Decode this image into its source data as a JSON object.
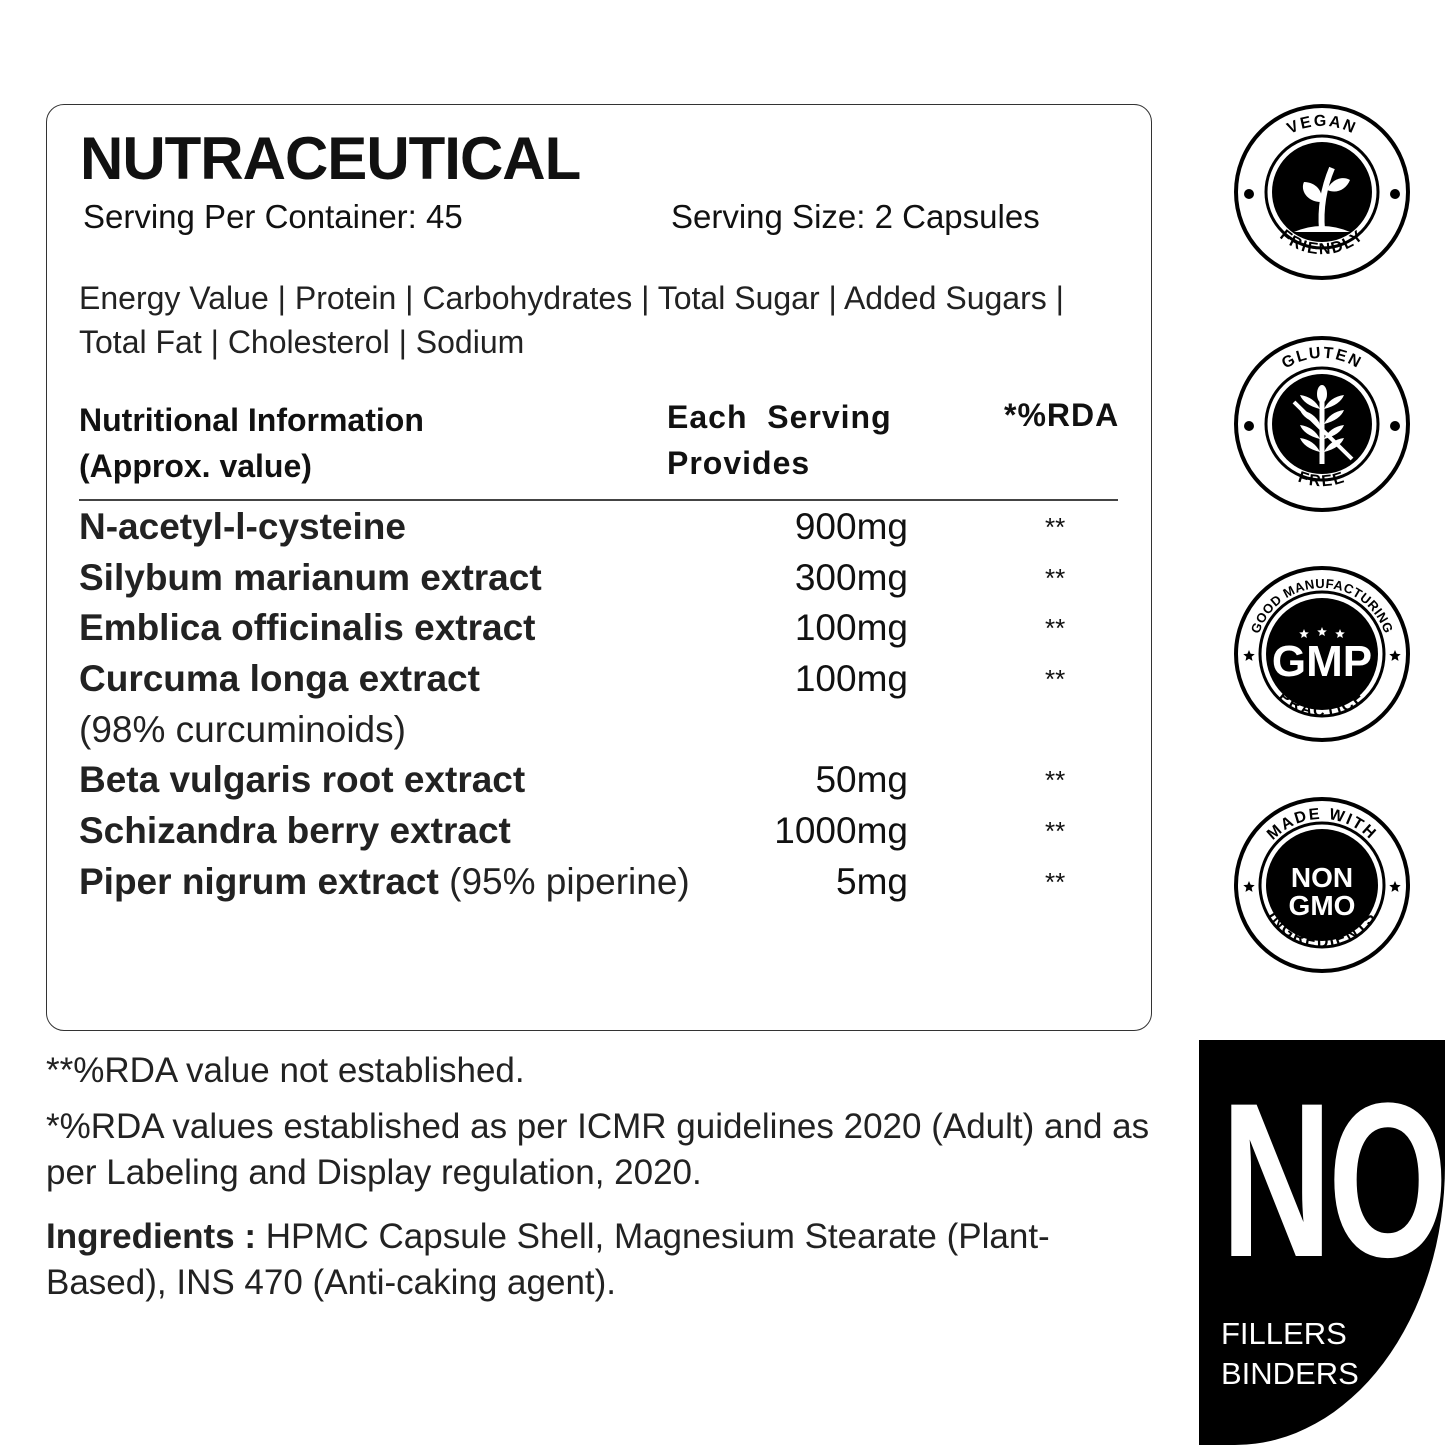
{
  "title": "NUTRACEUTICAL",
  "serving_per_container": "Serving Per Container: 45",
  "serving_size": "Serving Size: 2 Capsules",
  "nutrients_line": "Energy Value | Protein | Carbohydrates | Total Sugar | Added Sugars | Total Fat | Cholesterol | Sodium",
  "table": {
    "headers": {
      "col1_line1": "Nutritional Information",
      "col1_line2": "(Approx. value)",
      "col2_line1": "Each  Serving",
      "col2_line2": "Provides",
      "col3": "*%RDA"
    },
    "rows": [
      {
        "name": "N-acetyl-l-cysteine",
        "note": "",
        "amount": "900mg",
        "rda": "**"
      },
      {
        "name": "Silybum marianum extract",
        "note": "",
        "amount": "300mg",
        "rda": "**"
      },
      {
        "name": "Emblica officinalis extract",
        "note": "",
        "amount": "100mg",
        "rda": "**"
      },
      {
        "name": "Curcuma longa extract",
        "note": "",
        "amount": "100mg",
        "rda": "**"
      },
      {
        "name": "",
        "note": "(98% curcuminoids)",
        "amount": "",
        "rda": ""
      },
      {
        "name": "Beta vulgaris root extract",
        "note": "",
        "amount": "50mg",
        "rda": "**"
      },
      {
        "name": "Schizandra berry extract",
        "note": "",
        "amount": "1000mg",
        "rda": "**"
      },
      {
        "name": "Piper nigrum extract",
        "note": " (95% piperine)",
        "amount": "5mg",
        "rda": "**"
      }
    ]
  },
  "footnote1": "**%RDA value not established.",
  "footnote2": "*%RDA values established as per ICMR guidelines 2020 (Adult) and as per Labeling and Display regulation, 2020.",
  "ingredients_label": "Ingredients : ",
  "ingredients": "HPMC Capsule Shell, Magnesium Stearate (Plant-Based), INS 470 (Anti-caking agent).",
  "badges": [
    {
      "icon": "plant-sprout-icon",
      "top": "VEGAN",
      "bottom": "FRIENDLY"
    },
    {
      "icon": "crossed-wheat-icon",
      "top": "GLUTEN",
      "bottom": "FREE"
    },
    {
      "icon": "gmp-icon",
      "top": "GOOD MANUFACTURING",
      "bottom": "PRACTICE",
      "center": "GMP"
    },
    {
      "icon": "non-gmo-icon",
      "top": "MADE WITH",
      "bottom": "INGREDIENTS",
      "center1": "NON",
      "center2": "GMO"
    }
  ],
  "no_panel": {
    "big": "NO",
    "line1": "FILLERS",
    "line2": "BINDERS"
  }
}
